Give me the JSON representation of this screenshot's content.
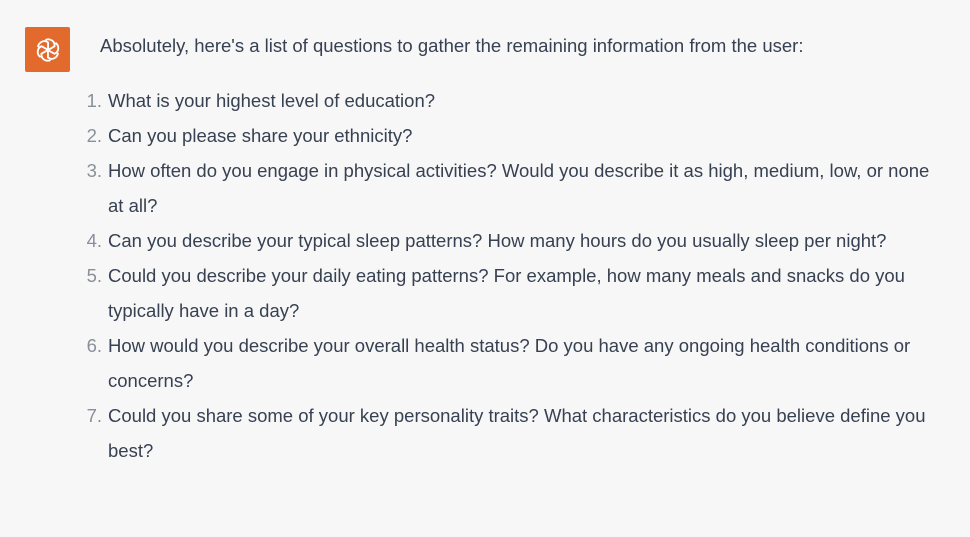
{
  "message": {
    "role": "assistant",
    "avatar_icon": "openai-logo-icon",
    "avatar_color": "#e26a2c",
    "intro": "Absolutely, here's a list of questions to gather the remaining information from the user:",
    "questions": [
      {
        "number": "1.",
        "text": "What is your highest level of education?"
      },
      {
        "number": "2.",
        "text": "Can you please share your ethnicity?"
      },
      {
        "number": "3.",
        "text": "How often do you engage in physical activities? Would you describe it as high, medium, low, or none at all?"
      },
      {
        "number": "4.",
        "text": "Can you describe your typical sleep patterns? How many hours do you usually sleep per night?"
      },
      {
        "number": "5.",
        "text": "Could you describe your daily eating patterns? For example, how many meals and snacks do you typically have in a day?"
      },
      {
        "number": "6.",
        "text": "How would you describe your overall health status? Do you have any ongoing health conditions or concerns?"
      },
      {
        "number": "7.",
        "text": "Could you share some of your key personality traits? What characteristics do you believe define you best?"
      }
    ]
  }
}
